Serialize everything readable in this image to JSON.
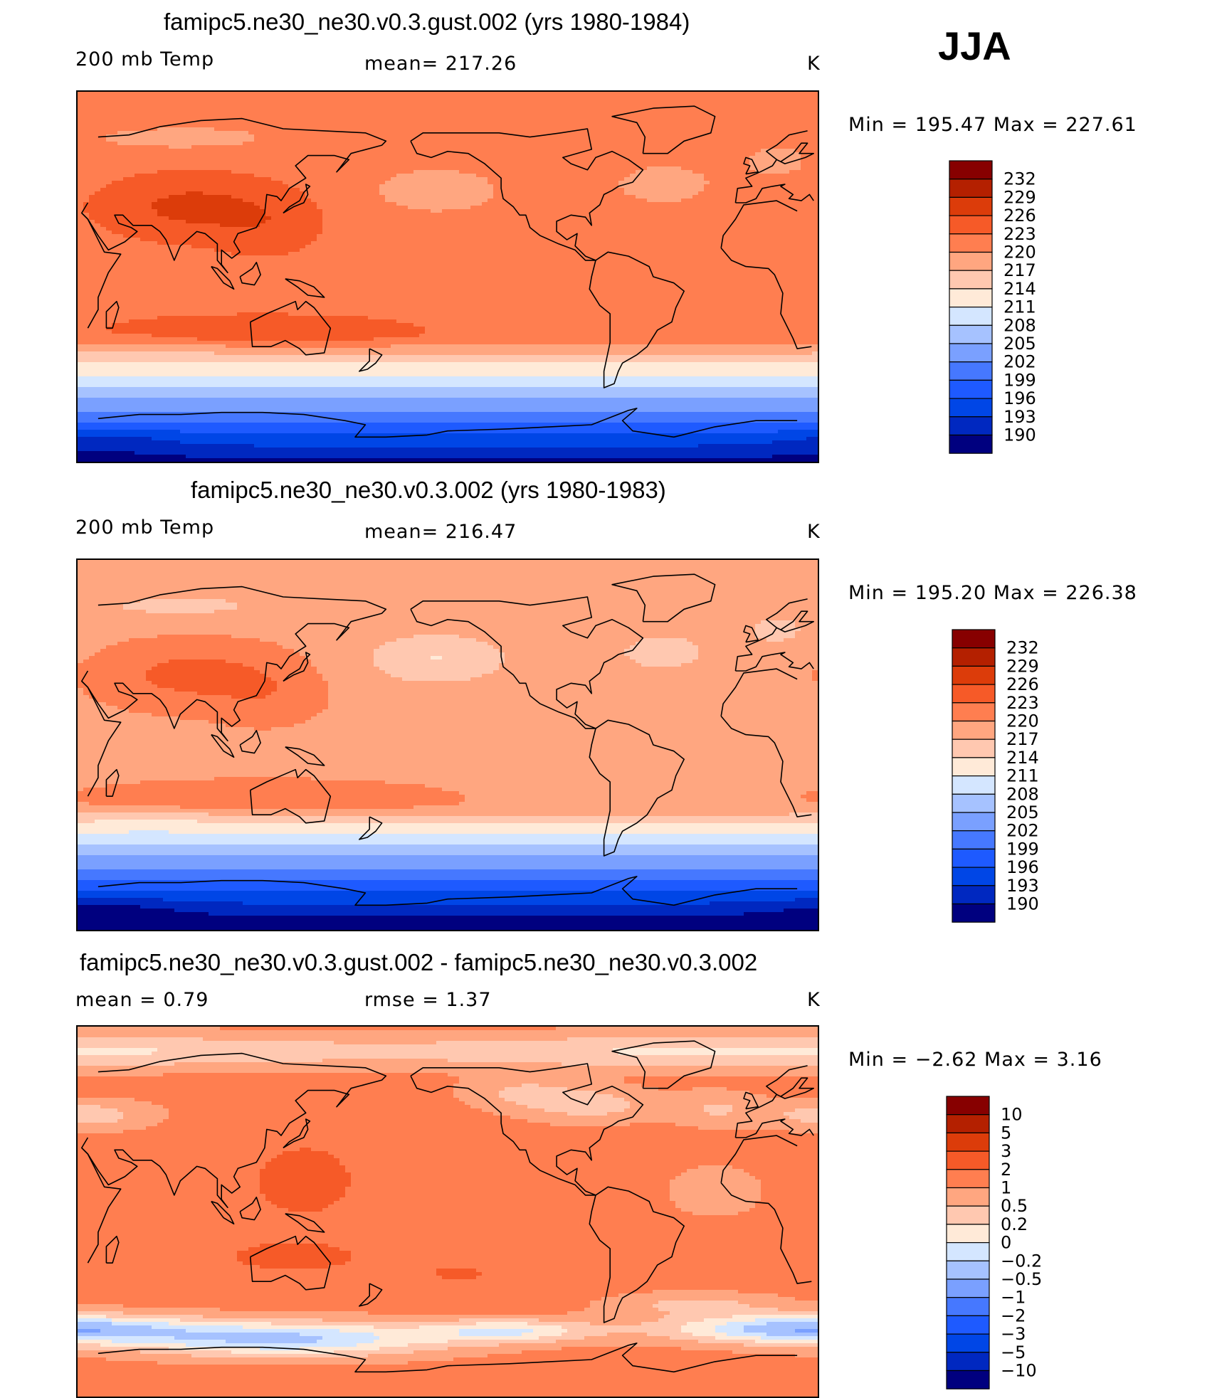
{
  "season": "JJA",
  "palettes": {
    "abs": [
      "#00007f",
      "#0028c0",
      "#0046e6",
      "#1e5aff",
      "#4678ff",
      "#7aa0ff",
      "#a6c2ff",
      "#d4e6ff",
      "#ffead8",
      "#ffc8b0",
      "#ffa680",
      "#ff7e50",
      "#f65a28",
      "#dc3c0a",
      "#b42000",
      "#870000"
    ],
    "diff": [
      "#00007f",
      "#0028c0",
      "#0046e6",
      "#1e5aff",
      "#4678ff",
      "#7aa0ff",
      "#a6c2ff",
      "#d4e6ff",
      "#ffead8",
      "#ffc8b0",
      "#ffa680",
      "#ff7e50",
      "#f65a28",
      "#dc3c0a",
      "#b42000",
      "#870000"
    ]
  },
  "chart_data": [
    {
      "type": "heatmap",
      "title": "famipc5.ne30_ne30.v0.3.gust.002 (yrs 1980-1984)",
      "variable": "200 mb Temp",
      "stat_text": "mean=  217.26",
      "units": "K",
      "min_max": "Min  =  195.47  Max  =  227.61",
      "min": 195.47,
      "max": 227.61,
      "mean": 217.26,
      "colorbar_levels": [
        "232",
        "229",
        "226",
        "223",
        "220",
        "217",
        "214",
        "211",
        "208",
        "205",
        "202",
        "199",
        "196",
        "193",
        "190"
      ],
      "field": "a"
    },
    {
      "type": "heatmap",
      "title": "famipc5.ne30_ne30.v0.3.002 (yrs 1980-1983)",
      "variable": "200 mb Temp",
      "stat_text": "mean=  216.47",
      "units": "K",
      "min_max": "Min  =  195.20  Max  =  226.38",
      "min": 195.2,
      "max": 226.38,
      "mean": 216.47,
      "colorbar_levels": [
        "232",
        "229",
        "226",
        "223",
        "220",
        "217",
        "214",
        "211",
        "208",
        "205",
        "202",
        "199",
        "196",
        "193",
        "190"
      ],
      "field": "b"
    },
    {
      "type": "heatmap",
      "title": "famipc5.ne30_ne30.v0.3.gust.002 - famipc5.ne30_ne30.v0.3.002",
      "variable": "mean  =     0.79",
      "stat_text": "rmse  =     1.37",
      "units": "K",
      "min_max": "Min  =   −2.62  Max  =      3.16",
      "min": -2.62,
      "max": 3.16,
      "mean": 0.79,
      "rmse": 1.37,
      "colorbar_levels": [
        "10",
        "5",
        "3",
        "2",
        "1",
        "0.5",
        "0.2",
        "0",
        "−0.2",
        "−0.5",
        "−1",
        "−2",
        "−3",
        "−5",
        "−10"
      ],
      "field": "diff"
    }
  ]
}
